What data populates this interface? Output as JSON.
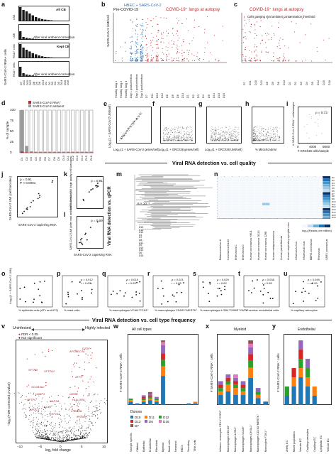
{
  "panels": {
    "a": "a",
    "b": "b",
    "c": "c",
    "d": "d",
    "e": "e",
    "f": "f",
    "g": "g",
    "h": "h",
    "i": "i",
    "j": "j",
    "k": "k",
    "l": "l",
    "m": "m",
    "n": "n",
    "o": "o",
    "p": "p",
    "q": "q",
    "r": "r",
    "s": "s",
    "t": "t",
    "u": "u",
    "v": "v",
    "w": "w",
    "x": "x",
    "y": "y"
  },
  "panel_a": {
    "y_label": "SARS-CoV-2 RNA+ cells",
    "rows": [
      "All CB",
      "After viral ambient correction",
      "Kept CB",
      "After viral ambient correction"
    ],
    "side_labels": [
      "UMI",
      "UMI",
      "RNA+ cells",
      "RNA+ cells"
    ],
    "donors": [
      "D7",
      "D11",
      "D10",
      "D12",
      "D8",
      "D9",
      "D6",
      "D13",
      "D1",
      "D2",
      "D3",
      "D4",
      "D5",
      "D14",
      "D15",
      "D16"
    ]
  },
  "panel_b": {
    "y_label": "SARS-CoV-2 UMI/cell",
    "label_pre": "Pre-COVID-19",
    "label_hbec": "HBEC + SARS-CoV-2",
    "label_lungs": "COVID-19⁺ lungs at autopsy",
    "x_labels": [
      "Healthy lung 1",
      "Healthy lung 2",
      "Healthy lung 3",
      "Day 1 post-infection",
      "Day 2 post-infection",
      "Day 3 post-infection",
      "D7",
      "D11",
      "D10",
      "D12",
      "D8",
      "D9",
      "D6",
      "D13",
      "D1",
      "D2",
      "D3",
      "D4",
      "D5",
      "D14",
      "D15",
      "D16"
    ]
  },
  "panel_c": {
    "label_lungs": "COVID-19⁺ lungs at autopsy",
    "note": "Cells passing viral ambient contamination threshold",
    "x_labels": [
      "D7",
      "D11",
      "D10",
      "D12",
      "D8",
      "D9",
      "D6",
      "D13",
      "D1",
      "D2",
      "D3",
      "D4",
      "D5",
      "D14",
      "D15",
      "D16"
    ]
  },
  "panel_d": {
    "y_label": "% of sample",
    "legend": [
      "SARS-CoV-2 RNA⁺",
      "SARS-CoV-2 ambient"
    ],
    "y_ticks": [
      "100",
      "75",
      "50",
      "25",
      "0"
    ]
  },
  "panel_e": {
    "y_label": "Log₁₀(1 + SARS-CoV-2 UMI/cell)",
    "x_label": "Log₁₀(1 + SARS-CoV-2 genes/cell)"
  },
  "panel_f": {
    "x_label": "Log₁₀(1 + GRCh38 genes/cell)"
  },
  "panel_g": {
    "x_label": "Log₁₀(1 + GRCh38 UMI/cell)"
  },
  "panel_h": {
    "x_label": "% Mitochondrial"
  },
  "panel_i": {
    "y_label": "# SARS-CoV-2 RNA⁺ cells/sample",
    "x_label": "# GRCh38 cells/sample",
    "stat": "ρ = 0.73",
    "x_ticks": [
      "0",
      "4000",
      "8000"
    ]
  },
  "section_quality": "Viral RNA detection vs. cell quality",
  "panel_j": {
    "y_label": "SARS-CoV-2 UMI (cell barcodes)",
    "x_label": "SARS-CoV-2 copies/ng RNA",
    "stat1": "ρ = 0.91",
    "stat2": "P < 0.0001"
  },
  "panel_k": {
    "y_label": "SARS-CoV-2 UMI (high quality cell barcodes)",
    "stat": "ρ = 0.91"
  },
  "panel_l": {
    "y_label": "SARS-CoV-2 UMI (after viral ambient correction)",
    "x_label": "SARS-CoV-2 copies/ng RNA",
    "stat": "ρ = 0.69"
  },
  "panel_qpcr_label": "Viral RNA detection vs. qPCR",
  "panel_m": {
    "scale": "6 × 10⁻⁵",
    "donors": [
      "D13",
      "D16",
      "D12",
      "D1",
      "D7",
      "D8",
      "D11",
      "D9",
      "D10",
      "D14",
      "D6",
      "D15"
    ]
  },
  "panel_n": {
    "viruses": [
      "Betacoronavirus A",
      "Coronavirus NL63",
      "Enterovirus C",
      "Enterovirus D",
      "Human coronavirus HKU1",
      "Human coronavirus OC43",
      "Human coronavirus 229E",
      "Human metapneumovirus",
      "Human parainfluenza",
      "Human respiratory syncytial virus",
      "Influenza A virus",
      "Influenza B virus",
      "MERS coronavirus",
      "Rhinovirus",
      "SARS coronavirus"
    ],
    "donors": [
      "D1",
      "D2",
      "D3",
      "D4",
      "D5",
      "D6",
      "D7",
      "D8",
      "D9",
      "D10",
      "D11",
      "D12",
      "D13",
      "D14",
      "D15",
      "D16"
    ],
    "colorbar_label": "log₁₀(Reads per million)"
  },
  "panel_o": {
    "y_label": "Log₁₀(1 + SARS-CoV-2 UMI)",
    "x_label": "% epithelial cells (AT1 and AT2)"
  },
  "panel_p": {
    "x_label": "% mast cells",
    "stat1": "ρ = 0.012",
    "stat2": "r = 0.67"
  },
  "panel_q": {
    "x_label": "% macrophages VCAN⁺FCN1⁺",
    "stat1": "ρ = 0.015",
    "stat2": "r = 0.63"
  },
  "panel_r": {
    "x_label": "% macrophages CD163⁺MERTK⁺",
    "stat1": "ρ = 0.021",
    "stat2": "r = 0.65"
  },
  "panel_s": {
    "x_label": "% macrophages LGB4⁺OSMR⁺YAP1⁺",
    "stat1": "ρ = 0.029",
    "stat2": "r = 0.62"
  },
  "panel_t": {
    "x_label": "% venular endothelial cells",
    "stat1": "ρ = 0.038",
    "stat2": "r = 0.65"
  },
  "panel_u": {
    "x_label": "% capillary aerocytes",
    "stat1": "ρ = 0.049",
    "stat2": "r = 0.59"
  },
  "section_cell_type": "Viral RNA detection vs. cell type frequency",
  "panel_v": {
    "left_label": "Uninfected",
    "right_label": "Highly infected",
    "legend": [
      "FDR < 0.05",
      "Not significant"
    ],
    "y_label": "−log₁₀(FDR-corrected p-value)",
    "x_label": "log₂ fold change",
    "x_ticks": [
      "−10",
      "−5",
      "0",
      "5",
      "10"
    ],
    "genes": [
      "DTDF",
      "APOBEC3A",
      "SFTPB",
      "SFTPA2",
      "ATF3",
      "SCGB3A2",
      "LAMP3",
      "SFTPC",
      "CCAT",
      "NAPSA",
      "GZMB",
      "HLA-DRA",
      "APOC1",
      "ISG15",
      "IFITM3",
      "EEF1A1"
    ]
  },
  "panel_w": {
    "title": "All cell types",
    "y_label": "# SARS-CoV-2 RNA⁺ cells",
    "donors_title": "Donors",
    "donors": [
      "D10",
      "D11",
      "D12",
      "D13",
      "D6",
      "D16",
      "D7"
    ],
    "categories": [
      "Sample specific",
      "Ciliated",
      "Epithelial",
      "Endothelial",
      "Fibroblast",
      "Myeloid",
      "Mast cells",
      "Neuronal",
      "RBCs",
      "Secretory",
      "T/NK cells"
    ]
  },
  "panel_x": {
    "title": "Myeloid",
    "y_label": "# SARS-CoV-2 RNA⁺ cells",
    "categories": [
      "Inflamm. monocytes CD14⁺CCR2⁺",
      "Macrophages CD163⁺",
      "Macrophages LGB4⁺",
      "Macrophages VCAN⁺",
      "Macrophages CHI3L1⁺",
      "Macrophages CD163⁺MERTK⁺",
      "Monocytes FCN1⁺"
    ]
  },
  "panel_y": {
    "title": "Endothelial",
    "y_label": "# SARS-CoV-2 RNA⁺ cells",
    "categories": [
      "Artery EC",
      "Mixed population",
      "Venular EC",
      "Capillary aerocytes",
      "Capillary EC",
      "Lymphatic EC",
      "Venous EC"
    ]
  },
  "chart_data": [
    {
      "type": "bar",
      "title": "panel d",
      "ylabel": "% of sample",
      "ylim": [
        0,
        100
      ],
      "categories": [
        "D1",
        "D2",
        "D3",
        "D4",
        "D5",
        "D6",
        "D7",
        "D8",
        "D9",
        "D10",
        "D11",
        "D12",
        "D13",
        "D14",
        "D15",
        "D16"
      ],
      "series": [
        {
          "name": "SARS-CoV-2 RNA⁺",
          "values": [
            3,
            1,
            0.5,
            0.5,
            0.5,
            0.5,
            0.5,
            0.5,
            0.5,
            0.5,
            0.5,
            0.5,
            0.5,
            0.5,
            0.5,
            0.5
          ]
        },
        {
          "name": "SARS-CoV-2 ambient",
          "values": [
            97,
            15,
            3,
            2,
            2,
            2,
            2,
            2,
            2,
            2,
            2,
            2,
            2,
            2,
            2,
            2
          ]
        }
      ]
    },
    {
      "type": "bar",
      "title": "panel w",
      "ylabel": "# SARS-CoV-2 RNA⁺ cells",
      "categories": [
        "Sample specific",
        "Ciliated",
        "Epithelial",
        "Endothelial",
        "Fibroblast",
        "Myeloid",
        "Mast cells",
        "Neuronal",
        "RBCs",
        "Secretory",
        "T/NK cells"
      ],
      "series": [
        {
          "name": "D10",
          "values": [
            2,
            1,
            2,
            3,
            2,
            18,
            0,
            0,
            0,
            1,
            1
          ]
        },
        {
          "name": "D11",
          "values": [
            1,
            0,
            1,
            1,
            1,
            6,
            0,
            0,
            0,
            0,
            1
          ]
        },
        {
          "name": "D12",
          "values": [
            1,
            0,
            1,
            1,
            1,
            4,
            0,
            0,
            0,
            0,
            0
          ]
        },
        {
          "name": "D13",
          "values": [
            0,
            0,
            1,
            1,
            0,
            4,
            0,
            0,
            0,
            0,
            0
          ]
        },
        {
          "name": "D6",
          "values": [
            0,
            0,
            1,
            1,
            1,
            5,
            0,
            0,
            0,
            0,
            0
          ]
        },
        {
          "name": "D16",
          "values": [
            0,
            0,
            0,
            0,
            0,
            2,
            0,
            0,
            0,
            0,
            0
          ]
        },
        {
          "name": "D7",
          "values": [
            0,
            0,
            0,
            1,
            0,
            1,
            0,
            0,
            0,
            0,
            0
          ]
        }
      ]
    },
    {
      "type": "bar",
      "title": "panel x",
      "ylabel": "# SARS-CoV-2 RNA⁺ cells",
      "categories": [
        "Inflamm. monocytes CD14⁺CCR2⁺",
        "Macrophages CD163⁺",
        "Macrophages LGB4⁺",
        "Macrophages VCAN⁺",
        "Macrophages CHI3L1⁺",
        "Macrophages CD163⁺MERTK⁺",
        "Monocytes FCN1⁺"
      ],
      "series": [
        {
          "name": "D10",
          "values": [
            3,
            4,
            3,
            3,
            8,
            2,
            1
          ]
        },
        {
          "name": "D11",
          "values": [
            1,
            2,
            2,
            1,
            3,
            1,
            0
          ]
        },
        {
          "name": "D12",
          "values": [
            1,
            1,
            1,
            1,
            2,
            1,
            0
          ]
        },
        {
          "name": "D13",
          "values": [
            1,
            1,
            1,
            1,
            2,
            0,
            0
          ]
        },
        {
          "name": "D6",
          "values": [
            1,
            1,
            1,
            1,
            2,
            1,
            0
          ]
        },
        {
          "name": "D16",
          "values": [
            0,
            0,
            1,
            0,
            1,
            0,
            0
          ]
        },
        {
          "name": "D7",
          "values": [
            0,
            0,
            0,
            0,
            1,
            0,
            0
          ]
        }
      ]
    },
    {
      "type": "bar",
      "title": "panel y",
      "ylabel": "# SARS-CoV-2 RNA⁺ cells",
      "categories": [
        "Artery EC",
        "Mixed population",
        "Venular EC",
        "Capillary aerocytes",
        "Capillary EC",
        "Lymphatic EC",
        "Venous EC"
      ],
      "series": [
        {
          "name": "D10",
          "values": [
            1,
            2,
            3,
            2,
            1,
            0,
            0
          ]
        },
        {
          "name": "D11",
          "values": [
            0,
            1,
            1,
            1,
            1,
            0,
            0
          ]
        },
        {
          "name": "D12",
          "values": [
            1,
            0,
            1,
            1,
            0,
            0,
            0
          ]
        },
        {
          "name": "D13",
          "values": [
            0,
            1,
            1,
            0,
            0,
            0,
            0
          ]
        },
        {
          "name": "D6",
          "values": [
            0,
            0,
            1,
            1,
            0,
            0,
            0
          ]
        },
        {
          "name": "D16",
          "values": [
            0,
            0,
            0,
            0,
            0,
            0,
            0
          ]
        },
        {
          "name": "D7",
          "values": [
            0,
            0,
            0,
            0,
            0,
            0,
            0
          ]
        }
      ]
    }
  ],
  "colors": {
    "red": "#c0272d",
    "blue": "#2d6fb7",
    "gray": "#9a9a9a",
    "D10": "#1f77b4",
    "D11": "#ff7f0e",
    "D12": "#2ca02c",
    "D13": "#d62728",
    "D6": "#9467bd",
    "D16": "#e377c2",
    "D7": "#8c564b"
  }
}
